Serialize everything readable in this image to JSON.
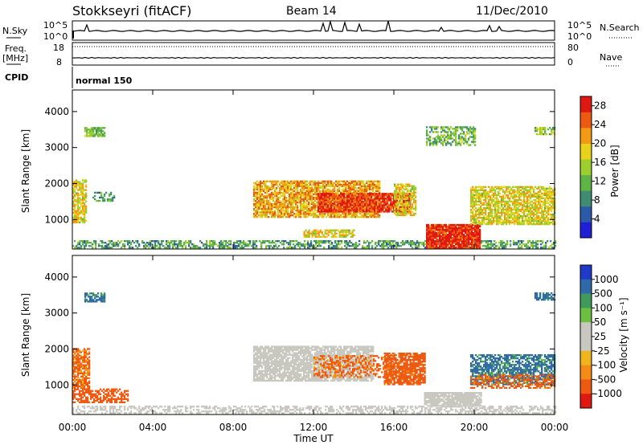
{
  "header": {
    "station": "Stokkseyri (fitACF)",
    "beam": "Beam 14",
    "date": "11/Dec/2010"
  },
  "top_panels": {
    "nsky_label": "N.Sky",
    "nsky_ticks": [
      "10^5",
      "10^0"
    ],
    "nsearch_label": "N.Search",
    "nsearch_ticks": [
      "10^5",
      "10^0"
    ],
    "freq_label": "Freq.",
    "freq_unit": "[MHz]",
    "freq_ticks": [
      "18",
      "8"
    ],
    "nave_label": "Nave",
    "nave_ticks": [
      "80",
      "0"
    ],
    "cpid_label": "CPID",
    "cpid_value": "normal 150"
  },
  "colors": {
    "power": [
      "#1f1fd6",
      "#2a5aa8",
      "#3f8c72",
      "#5fb446",
      "#9ccf2c",
      "#e8d21c",
      "#f29a14",
      "#ec5a12",
      "#e01812"
    ],
    "velocity": [
      "#e01812",
      "#ec5a12",
      "#f58a14",
      "#f0b41c",
      "#c8c8c0",
      "#c8c8c0",
      "#6cc040",
      "#3f9a5c",
      "#2f6aa8",
      "#1f3ac8"
    ],
    "ground_scatter": "#c8c8c0"
  },
  "chart_data": [
    {
      "type": "heatmap",
      "name": "power",
      "xlabel": "",
      "ylabel": "Slant Range [km]",
      "x_ticks": [
        "00:00",
        "04:00",
        "08:00",
        "12:00",
        "16:00",
        "20:00",
        "00:00"
      ],
      "x_range_hours": [
        0,
        24
      ],
      "y_ticks": [
        "1000",
        "2000",
        "3000",
        "4000"
      ],
      "y_range_km": [
        180,
        4600
      ],
      "colorbar": {
        "label": "Power [dB]",
        "ticks": [
          "4",
          "8",
          "12",
          "16",
          "20",
          "24",
          "28"
        ],
        "range": [
          0,
          30
        ]
      },
      "regions": [
        {
          "t": [
            0.0,
            24.0
          ],
          "r": [
            200,
            420
          ],
          "value": 10,
          "density": 0.55
        },
        {
          "t": [
            0.0,
            0.7
          ],
          "r": [
            900,
            2100
          ],
          "value": 18,
          "density": 0.8
        },
        {
          "t": [
            0.6,
            1.6
          ],
          "r": [
            3300,
            3550
          ],
          "value": 12,
          "density": 0.7
        },
        {
          "t": [
            1.0,
            2.1
          ],
          "r": [
            1500,
            1750
          ],
          "value": 10,
          "density": 0.5
        },
        {
          "t": [
            9.0,
            15.3
          ],
          "r": [
            1050,
            2050
          ],
          "value": 21,
          "density": 0.8
        },
        {
          "t": [
            12.2,
            16.8
          ],
          "r": [
            1200,
            1700
          ],
          "value": 27,
          "density": 0.9
        },
        {
          "t": [
            11.5,
            14.0
          ],
          "r": [
            500,
            700
          ],
          "value": 18,
          "density": 0.7
        },
        {
          "t": [
            16.0,
            17.1
          ],
          "r": [
            1100,
            2000
          ],
          "value": 18,
          "density": 0.7
        },
        {
          "t": [
            17.6,
            20.3
          ],
          "r": [
            200,
            850
          ],
          "value": 28,
          "density": 0.95
        },
        {
          "t": [
            17.6,
            20.0
          ],
          "r": [
            3050,
            3550
          ],
          "value": 12,
          "density": 0.55
        },
        {
          "t": [
            19.8,
            24.0
          ],
          "r": [
            850,
            1900
          ],
          "value": 18,
          "density": 0.75
        },
        {
          "t": [
            23.0,
            24.0
          ],
          "r": [
            3350,
            3550
          ],
          "value": 14,
          "density": 0.6
        }
      ]
    },
    {
      "type": "heatmap",
      "name": "velocity",
      "xlabel": "Time UT",
      "ylabel": "Slant Range [km]",
      "x_ticks": [
        "00:00",
        "04:00",
        "08:00",
        "12:00",
        "16:00",
        "20:00",
        "00:00"
      ],
      "x_range_hours": [
        0,
        24
      ],
      "y_ticks": [
        "1000",
        "2000",
        "3000",
        "4000"
      ],
      "y_range_km": [
        180,
        4600
      ],
      "colorbar": {
        "label": "Velocity [m s⁻¹]",
        "ticks": [
          "1000",
          "500",
          "100",
          "50",
          "25",
          "-25",
          "-100",
          "-500",
          "-1000"
        ],
        "range": [
          -1000,
          1000
        ]
      },
      "regions": [
        {
          "t": [
            0.0,
            24.0
          ],
          "r": [
            200,
            420
          ],
          "value": 0,
          "density": 0.5,
          "ground": true
        },
        {
          "t": [
            0.0,
            0.8
          ],
          "r": [
            900,
            2000
          ],
          "value": -120,
          "density": 0.75
        },
        {
          "t": [
            0.0,
            2.8
          ],
          "r": [
            500,
            900
          ],
          "value": -300,
          "density": 0.6
        },
        {
          "t": [
            0.6,
            1.6
          ],
          "r": [
            3300,
            3550
          ],
          "value": 150,
          "density": 0.7
        },
        {
          "t": [
            9.0,
            15.0
          ],
          "r": [
            1100,
            2050
          ],
          "value": 0,
          "density": 0.8,
          "ground": true
        },
        {
          "t": [
            12.0,
            16.0
          ],
          "r": [
            1200,
            1800
          ],
          "value": -150,
          "density": 0.45
        },
        {
          "t": [
            15.5,
            17.5
          ],
          "r": [
            1000,
            1900
          ],
          "value": -220,
          "density": 0.8
        },
        {
          "t": [
            17.5,
            20.3
          ],
          "r": [
            400,
            800
          ],
          "value": 0,
          "density": 0.9,
          "ground": true
        },
        {
          "t": [
            19.8,
            24.0
          ],
          "r": [
            1000,
            1850
          ],
          "value": 150,
          "density": 0.7
        },
        {
          "t": [
            19.8,
            24.0
          ],
          "r": [
            900,
            1300
          ],
          "value": -200,
          "density": 0.5
        },
        {
          "t": [
            23.0,
            24.0
          ],
          "r": [
            3350,
            3550
          ],
          "value": 200,
          "density": 0.6
        }
      ]
    }
  ]
}
